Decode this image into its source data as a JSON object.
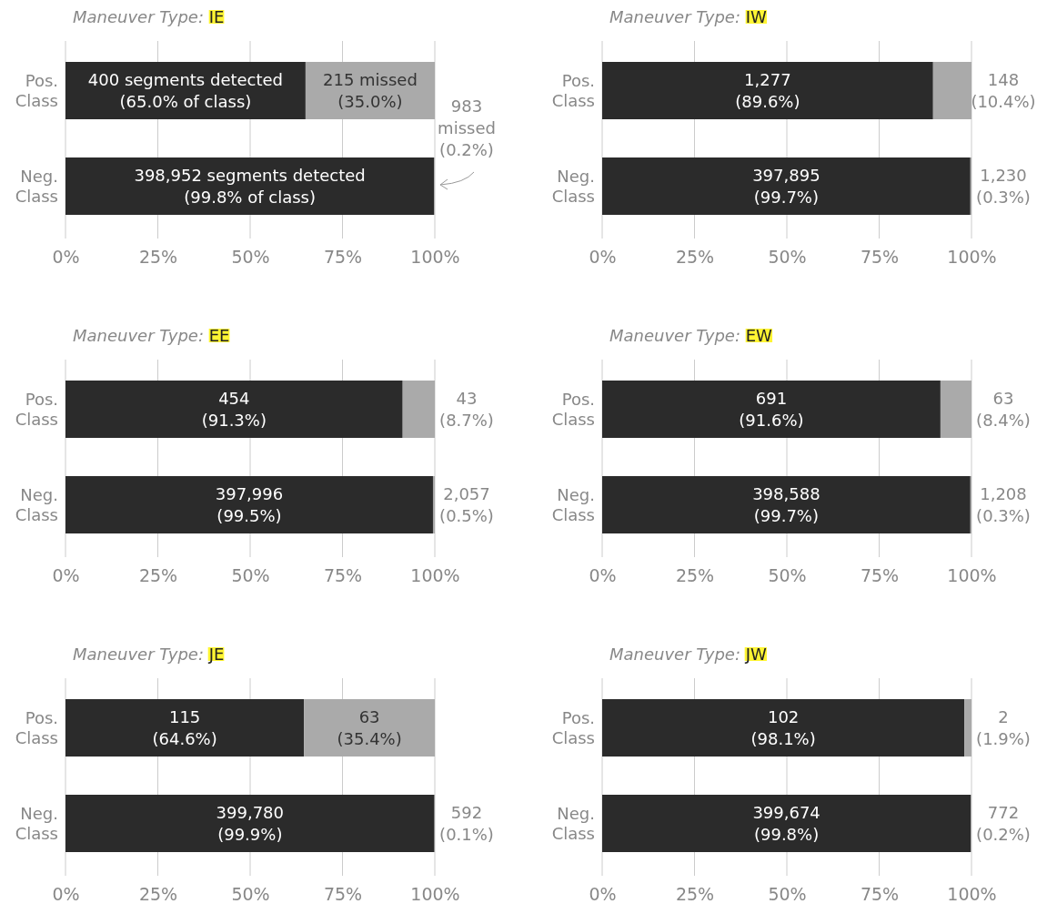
{
  "chart_data": [
    {
      "type": "bar",
      "title": "Maneuver Type: IE",
      "orientation": "horizontal",
      "stacked": true,
      "grid": "x",
      "categories": [
        "Pos. Class",
        "Neg. Class"
      ],
      "xlim": [
        0,
        100
      ],
      "xticks": [
        {
          "value": 0,
          "label": "0%"
        },
        {
          "value": 25,
          "label": "25%"
        },
        {
          "value": 50,
          "label": "50%"
        },
        {
          "value": 75,
          "label": "75%"
        },
        {
          "value": 100,
          "label": "100%"
        }
      ],
      "series": [
        {
          "color": "#2b2b2b",
          "values": [
            65.0,
            99.8
          ],
          "value_labels": [
            "400 segments detected (65.0% of class)",
            "398,952 segments detected (99.8% of class)"
          ]
        },
        {
          "color": "#aaaaaa",
          "values": [
            35.0,
            0.2
          ],
          "value_labels": [
            "215 missed (35.0%)",
            "983 missed (0.2%)"
          ]
        }
      ]
    },
    {
      "type": "bar",
      "title": "Maneuver Type: IW",
      "orientation": "horizontal",
      "stacked": true,
      "grid": "x",
      "categories": [
        "Pos. Class",
        "Neg. Class"
      ],
      "xlim": [
        0,
        100
      ],
      "xticks": [
        {
          "value": 0,
          "label": "0%"
        },
        {
          "value": 25,
          "label": "25%"
        },
        {
          "value": 50,
          "label": "50%"
        },
        {
          "value": 75,
          "label": "75%"
        },
        {
          "value": 100,
          "label": "100%"
        }
      ],
      "series": [
        {
          "color": "#2b2b2b",
          "values": [
            89.6,
            99.7
          ],
          "value_labels": [
            "1,277 (89.6%)",
            "397,895 (99.7%)"
          ]
        },
        {
          "color": "#aaaaaa",
          "values": [
            10.4,
            0.3
          ],
          "value_labels": [
            "148 (10.4%)",
            "1,230 (0.3%)"
          ]
        }
      ]
    },
    {
      "type": "bar",
      "title": "Maneuver Type: EE",
      "orientation": "horizontal",
      "stacked": true,
      "grid": "x",
      "categories": [
        "Pos. Class",
        "Neg. Class"
      ],
      "xlim": [
        0,
        100
      ],
      "xticks": [
        {
          "value": 0,
          "label": "0%"
        },
        {
          "value": 25,
          "label": "25%"
        },
        {
          "value": 50,
          "label": "50%"
        },
        {
          "value": 75,
          "label": "75%"
        },
        {
          "value": 100,
          "label": "100%"
        }
      ],
      "series": [
        {
          "color": "#2b2b2b",
          "values": [
            91.3,
            99.5
          ],
          "value_labels": [
            "454 (91.3%)",
            "397,996 (99.5%)"
          ]
        },
        {
          "color": "#aaaaaa",
          "values": [
            8.7,
            0.5
          ],
          "value_labels": [
            "43 (8.7%)",
            "2,057 (0.5%)"
          ]
        }
      ]
    },
    {
      "type": "bar",
      "title": "Maneuver Type: EW",
      "orientation": "horizontal",
      "stacked": true,
      "grid": "x",
      "categories": [
        "Pos. Class",
        "Neg. Class"
      ],
      "xlim": [
        0,
        100
      ],
      "xticks": [
        {
          "value": 0,
          "label": "0%"
        },
        {
          "value": 25,
          "label": "25%"
        },
        {
          "value": 50,
          "label": "50%"
        },
        {
          "value": 75,
          "label": "75%"
        },
        {
          "value": 100,
          "label": "100%"
        }
      ],
      "series": [
        {
          "color": "#2b2b2b",
          "values": [
            91.6,
            99.7
          ],
          "value_labels": [
            "691 (91.6%)",
            "398,588 (99.7%)"
          ]
        },
        {
          "color": "#aaaaaa",
          "values": [
            8.4,
            0.3
          ],
          "value_labels": [
            "63 (8.4%)",
            "1,208 (0.3%)"
          ]
        }
      ]
    },
    {
      "type": "bar",
      "title": "Maneuver Type: JE",
      "orientation": "horizontal",
      "stacked": true,
      "grid": "x",
      "categories": [
        "Pos. Class",
        "Neg. Class"
      ],
      "xlim": [
        0,
        100
      ],
      "xticks": [
        {
          "value": 0,
          "label": "0%"
        },
        {
          "value": 25,
          "label": "25%"
        },
        {
          "value": 50,
          "label": "50%"
        },
        {
          "value": 75,
          "label": "75%"
        },
        {
          "value": 100,
          "label": "100%"
        }
      ],
      "series": [
        {
          "color": "#2b2b2b",
          "values": [
            64.6,
            99.9
          ],
          "value_labels": [
            "115 (64.6%)",
            "399,780 (99.9%)"
          ]
        },
        {
          "color": "#aaaaaa",
          "values": [
            35.4,
            0.1
          ],
          "value_labels": [
            "63 (35.4%)",
            "592 (0.1%)"
          ]
        }
      ]
    },
    {
      "type": "bar",
      "title": "Maneuver Type: JW",
      "orientation": "horizontal",
      "stacked": true,
      "grid": "x",
      "categories": [
        "Pos. Class",
        "Neg. Class"
      ],
      "xlim": [
        0,
        100
      ],
      "xticks": [
        {
          "value": 0,
          "label": "0%"
        },
        {
          "value": 25,
          "label": "25%"
        },
        {
          "value": 50,
          "label": "50%"
        },
        {
          "value": 75,
          "label": "75%"
        },
        {
          "value": 100,
          "label": "100%"
        }
      ],
      "series": [
        {
          "color": "#2b2b2b",
          "values": [
            98.1,
            99.8
          ],
          "value_labels": [
            "102 (98.1%)",
            "399,674 (99.8%)"
          ]
        },
        {
          "color": "#aaaaaa",
          "values": [
            1.9,
            0.2
          ],
          "value_labels": [
            "2 (1.9%)",
            "772 (0.2%)"
          ]
        }
      ]
    }
  ]
}
